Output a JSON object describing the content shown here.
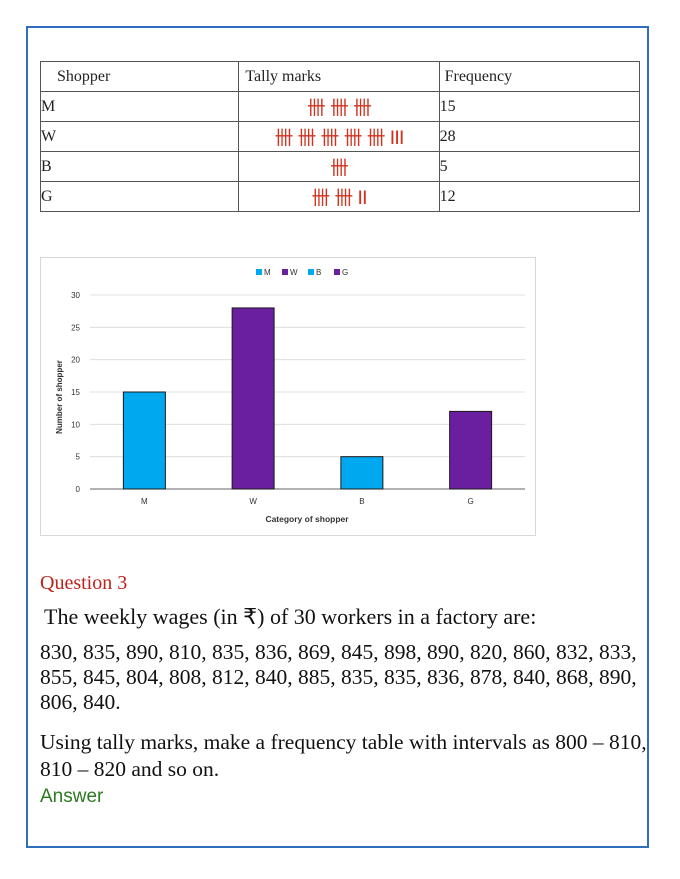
{
  "table": {
    "headers": [
      "Shopper",
      "Tally marks",
      "Frequency"
    ],
    "rows": [
      {
        "shopper": "M",
        "tally": "卌 卌 卌",
        "frequency": "15"
      },
      {
        "shopper": "W",
        "tally": "卌 卌 卌 卌 卌 III",
        "frequency": "28"
      },
      {
        "shopper": "B",
        "tally": "卌",
        "frequency": "5"
      },
      {
        "shopper": "G",
        "tally": "卌 卌 II",
        "frequency": "12"
      }
    ]
  },
  "chart_data": {
    "type": "bar",
    "categories": [
      "M",
      "W",
      "B",
      "G"
    ],
    "values": [
      15,
      28,
      5,
      12
    ],
    "colors": [
      "#00a8f0",
      "#6a1fa0",
      "#00a8f0",
      "#6a1fa0"
    ],
    "legend": [
      "M",
      "W",
      "B",
      "G"
    ],
    "legend_position": "top",
    "xlabel": "Category of shopper",
    "ylabel": "Number of shopper",
    "ylim": [
      0,
      30
    ],
    "yticks": [
      "0",
      "5",
      "10",
      "15",
      "20",
      "25",
      "30"
    ],
    "grid": true
  },
  "question": {
    "title": "Question 3",
    "intro": "The weekly wages (in ₹) of 30 workers in a factory are:",
    "data_text": "830, 835, 890, 810, 835, 836, 869, 845, 898, 890, 820, 860, 832, 833, 855, 845, 804, 808, 812, 840, 885, 835, 835, 836, 878, 840, 868, 890, 806, 840.",
    "instruction": "Using tally marks, make a frequency table with intervals as 800 – 810, 810 – 820 and so on.",
    "answer_label": "Answer"
  }
}
